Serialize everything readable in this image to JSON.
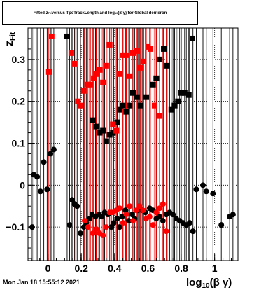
{
  "title": "Fitted z_Fit versus TpcTrackLength and log10(βγ) for Global deuteron",
  "title_parts": {
    "pre": "Fitted z",
    "sub1": "Fit",
    "mid": " versus TpcTrackLength and log",
    "sub2": "10",
    "post": "(β γ) for Global deuteron"
  },
  "footer": "Mon Jan 18 15:55:12 2021",
  "axis_labels": {
    "y_main": "z",
    "y_sub": "Fit",
    "x_main": "log",
    "x_sub": "10",
    "x_rest": "(β γ)"
  },
  "colors": {
    "black_series": "#000000",
    "red_series": "#ff0000",
    "grid": "#000000"
  },
  "chart_data": {
    "type": "scatter",
    "xlim": [
      -0.12,
      1.14
    ],
    "ylim": [
      -0.18,
      0.375
    ],
    "grid": true,
    "x_ticks": [
      0,
      0.2,
      0.4,
      0.6,
      0.8,
      1
    ],
    "x_tick_labels": [
      "0",
      "0.2",
      "0.4",
      "0.6",
      "0.8",
      "1"
    ],
    "y_ticks": [
      -0.1,
      0,
      0.1,
      0.2,
      0.3
    ],
    "y_tick_labels": [
      "−0.1",
      "0",
      "0.1",
      "0.2",
      "0.3"
    ],
    "series": [
      {
        "color": "#000000",
        "marker": "square",
        "points": [
          {
            "x": 0.115,
            "y": 0.355
          },
          {
            "x": 0.27,
            "y": 0.155
          },
          {
            "x": 0.29,
            "y": 0.14
          },
          {
            "x": 0.31,
            "y": 0.125
          },
          {
            "x": 0.33,
            "y": 0.13
          },
          {
            "x": 0.35,
            "y": 0.105
          },
          {
            "x": 0.37,
            "y": 0.12
          },
          {
            "x": 0.39,
            "y": 0.125
          },
          {
            "x": 0.415,
            "y": 0.15
          },
          {
            "x": 0.43,
            "y": 0.18
          },
          {
            "x": 0.45,
            "y": 0.19
          },
          {
            "x": 0.47,
            "y": 0.175
          },
          {
            "x": 0.49,
            "y": 0.19
          },
          {
            "x": 0.51,
            "y": 0.22
          },
          {
            "x": 0.535,
            "y": 0.21
          },
          {
            "x": 0.555,
            "y": 0.19
          },
          {
            "x": 0.59,
            "y": 0.21
          },
          {
            "x": 0.63,
            "y": 0.24
          },
          {
            "x": 0.65,
            "y": 0.255
          },
          {
            "x": 0.67,
            "y": 0.3
          },
          {
            "x": 0.695,
            "y": 0.325
          },
          {
            "x": 0.715,
            "y": 0.285
          },
          {
            "x": 0.74,
            "y": 0.18
          },
          {
            "x": 0.76,
            "y": 0.19
          },
          {
            "x": 0.78,
            "y": 0.2
          },
          {
            "x": 0.8,
            "y": 0.22
          },
          {
            "x": 0.82,
            "y": 0.22
          },
          {
            "x": 0.845,
            "y": 0.215
          },
          {
            "x": 0.865,
            "y": 0.35
          }
        ]
      },
      {
        "color": "#ff0000",
        "marker": "square",
        "points": [
          {
            "x": 0.005,
            "y": 0.27
          },
          {
            "x": 0.022,
            "y": 0.355
          },
          {
            "x": 0.14,
            "y": 0.315
          },
          {
            "x": 0.16,
            "y": 0.29
          },
          {
            "x": 0.18,
            "y": 0.2
          },
          {
            "x": 0.195,
            "y": 0.19
          },
          {
            "x": 0.215,
            "y": 0.225
          },
          {
            "x": 0.235,
            "y": 0.24
          },
          {
            "x": 0.255,
            "y": 0.24
          },
          {
            "x": 0.275,
            "y": 0.255
          },
          {
            "x": 0.29,
            "y": 0.265
          },
          {
            "x": 0.31,
            "y": 0.275
          },
          {
            "x": 0.33,
            "y": 0.245
          },
          {
            "x": 0.35,
            "y": 0.285
          },
          {
            "x": 0.37,
            "y": 0.335
          },
          {
            "x": 0.39,
            "y": 0.145
          },
          {
            "x": 0.41,
            "y": 0.13
          },
          {
            "x": 0.43,
            "y": 0.265
          },
          {
            "x": 0.45,
            "y": 0.31
          },
          {
            "x": 0.47,
            "y": 0.31
          },
          {
            "x": 0.49,
            "y": 0.26
          },
          {
            "x": 0.51,
            "y": 0.315
          },
          {
            "x": 0.535,
            "y": 0.32
          },
          {
            "x": 0.555,
            "y": 0.28
          },
          {
            "x": 0.575,
            "y": 0.295
          },
          {
            "x": 0.6,
            "y": 0.33
          },
          {
            "x": 0.615,
            "y": 0.325
          },
          {
            "x": 0.64,
            "y": 0.19
          },
          {
            "x": 0.67,
            "y": 0.165
          }
        ]
      },
      {
        "color": "#000000",
        "marker": "circle",
        "points": [
          {
            "x": -0.095,
            "y": -0.1
          },
          {
            "x": -0.085,
            "y": 0.025
          },
          {
            "x": -0.065,
            "y": 0.02
          },
          {
            "x": -0.045,
            "y": -0.015
          },
          {
            "x": -0.025,
            "y": 0.055
          },
          {
            "x": -0.005,
            "y": -0.01
          },
          {
            "x": 0.035,
            "y": 0.085
          },
          {
            "x": 0.015,
            "y": 0.075
          },
          {
            "x": 0.13,
            "y": -0.095
          },
          {
            "x": 0.145,
            "y": -0.035
          },
          {
            "x": 0.16,
            "y": -0.045
          },
          {
            "x": 0.175,
            "y": -0.05
          },
          {
            "x": 0.195,
            "y": -0.115
          },
          {
            "x": 0.215,
            "y": -0.1
          },
          {
            "x": 0.23,
            "y": -0.09
          },
          {
            "x": 0.25,
            "y": -0.08
          },
          {
            "x": 0.265,
            "y": -0.07
          },
          {
            "x": 0.285,
            "y": -0.075
          },
          {
            "x": 0.305,
            "y": -0.07
          },
          {
            "x": 0.32,
            "y": -0.075
          },
          {
            "x": 0.34,
            "y": -0.065
          },
          {
            "x": 0.36,
            "y": -0.07
          },
          {
            "x": 0.38,
            "y": -0.1
          },
          {
            "x": 0.395,
            "y": -0.09
          },
          {
            "x": 0.415,
            "y": -0.08
          },
          {
            "x": 0.43,
            "y": -0.1
          },
          {
            "x": 0.445,
            "y": -0.075
          },
          {
            "x": 0.465,
            "y": -0.06
          },
          {
            "x": 0.485,
            "y": -0.085
          },
          {
            "x": 0.505,
            "y": -0.07
          },
          {
            "x": 0.52,
            "y": -0.08
          },
          {
            "x": 0.54,
            "y": -0.06
          },
          {
            "x": 0.565,
            "y": -0.06
          },
          {
            "x": 0.585,
            "y": -0.065
          },
          {
            "x": 0.61,
            "y": -0.055
          },
          {
            "x": 0.63,
            "y": -0.06
          },
          {
            "x": 0.65,
            "y": -0.08
          },
          {
            "x": 0.67,
            "y": -0.075
          },
          {
            "x": 0.69,
            "y": -0.085
          },
          {
            "x": 0.71,
            "y": -0.07
          },
          {
            "x": 0.73,
            "y": -0.065
          },
          {
            "x": 0.75,
            "y": -0.07
          },
          {
            "x": 0.77,
            "y": -0.08
          },
          {
            "x": 0.79,
            "y": -0.085
          },
          {
            "x": 0.81,
            "y": -0.09
          },
          {
            "x": 0.83,
            "y": -0.095
          },
          {
            "x": 0.85,
            "y": -0.09
          },
          {
            "x": 0.87,
            "y": -0.11
          },
          {
            "x": 0.89,
            "y": -0.01
          },
          {
            "x": 0.93,
            "y": 0.0
          },
          {
            "x": 0.95,
            "y": -0.015
          },
          {
            "x": 0.99,
            "y": -0.02
          },
          {
            "x": 1.04,
            "y": -0.095
          },
          {
            "x": 1.09,
            "y": -0.075
          },
          {
            "x": 1.11,
            "y": -0.07
          }
        ]
      },
      {
        "color": "#ff0000",
        "marker": "circle",
        "points": [
          {
            "x": 0.22,
            "y": -0.085
          },
          {
            "x": 0.24,
            "y": -0.1
          },
          {
            "x": 0.27,
            "y": -0.115
          },
          {
            "x": 0.29,
            "y": -0.105
          },
          {
            "x": 0.31,
            "y": -0.115
          },
          {
            "x": 0.33,
            "y": -0.12
          },
          {
            "x": 0.35,
            "y": -0.1
          },
          {
            "x": 0.37,
            "y": -0.065
          },
          {
            "x": 0.39,
            "y": -0.065
          },
          {
            "x": 0.41,
            "y": -0.06
          },
          {
            "x": 0.43,
            "y": -0.055
          },
          {
            "x": 0.45,
            "y": -0.09
          },
          {
            "x": 0.47,
            "y": -0.07
          },
          {
            "x": 0.49,
            "y": -0.05
          },
          {
            "x": 0.51,
            "y": -0.085
          },
          {
            "x": 0.53,
            "y": -0.06
          },
          {
            "x": 0.55,
            "y": -0.05
          },
          {
            "x": 0.57,
            "y": -0.06
          },
          {
            "x": 0.59,
            "y": -0.08
          },
          {
            "x": 0.61,
            "y": -0.075
          },
          {
            "x": 0.63,
            "y": -0.095
          },
          {
            "x": 0.65,
            "y": -0.065
          },
          {
            "x": 0.67,
            "y": -0.055
          },
          {
            "x": 0.69,
            "y": -0.045
          },
          {
            "x": 0.71,
            "y": -0.11
          }
        ]
      }
    ]
  }
}
